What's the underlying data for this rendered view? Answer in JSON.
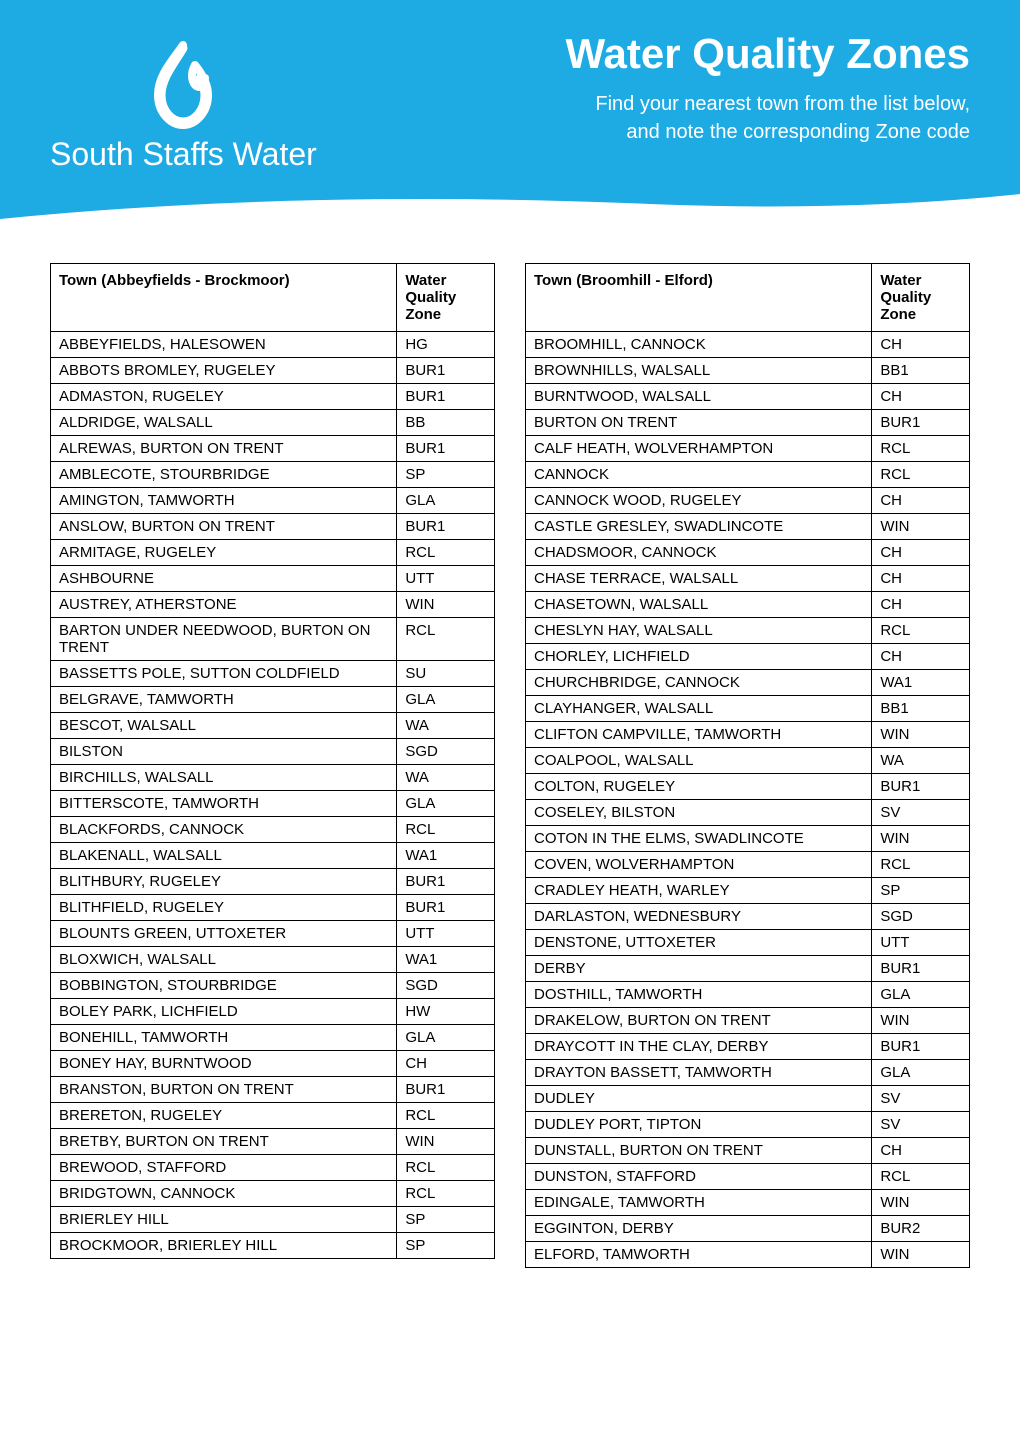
{
  "header": {
    "brand": "South Staffs Water",
    "title": "Water Quality Zones",
    "subtitle_line1": "Find your nearest town from the list below,",
    "subtitle_line2": "and note the corresponding Zone code"
  },
  "colors": {
    "header_bg": "#1eaae2",
    "header_text": "#ffffff",
    "body_bg": "#ffffff",
    "border": "#000000",
    "cell_text": "#000000"
  },
  "typography": {
    "title_fontsize": 42,
    "subtitle_fontsize": 20,
    "brand_fontsize": 32,
    "table_fontsize": 15
  },
  "tables": {
    "left": {
      "header_town": "Town (Abbeyfields - Brockmoor)",
      "header_zone": "Water Quality Zone",
      "rows": [
        {
          "town": "ABBEYFIELDS, HALESOWEN",
          "zone": "HG"
        },
        {
          "town": "ABBOTS BROMLEY, RUGELEY",
          "zone": "BUR1"
        },
        {
          "town": "ADMASTON, RUGELEY",
          "zone": "BUR1"
        },
        {
          "town": "ALDRIDGE, WALSALL",
          "zone": "BB"
        },
        {
          "town": "ALREWAS, BURTON ON TRENT",
          "zone": "BUR1"
        },
        {
          "town": "AMBLECOTE, STOURBRIDGE",
          "zone": "SP"
        },
        {
          "town": "AMINGTON, TAMWORTH",
          "zone": "GLA"
        },
        {
          "town": "ANSLOW, BURTON ON TRENT",
          "zone": "BUR1"
        },
        {
          "town": "ARMITAGE, RUGELEY",
          "zone": "RCL"
        },
        {
          "town": "ASHBOURNE",
          "zone": "UTT"
        },
        {
          "town": "AUSTREY, ATHERSTONE",
          "zone": "WIN"
        },
        {
          "town": "BARTON UNDER NEEDWOOD, BURTON ON TRENT",
          "zone": "RCL"
        },
        {
          "town": "BASSETTS POLE, SUTTON COLDFIELD",
          "zone": "SU"
        },
        {
          "town": "BELGRAVE, TAMWORTH",
          "zone": "GLA"
        },
        {
          "town": "BESCOT, WALSALL",
          "zone": "WA"
        },
        {
          "town": "BILSTON",
          "zone": "SGD"
        },
        {
          "town": "BIRCHILLS, WALSALL",
          "zone": "WA"
        },
        {
          "town": "BITTERSCOTE, TAMWORTH",
          "zone": "GLA"
        },
        {
          "town": "BLACKFORDS, CANNOCK",
          "zone": "RCL"
        },
        {
          "town": "BLAKENALL, WALSALL",
          "zone": "WA1"
        },
        {
          "town": "BLITHBURY, RUGELEY",
          "zone": "BUR1"
        },
        {
          "town": "BLITHFIELD, RUGELEY",
          "zone": "BUR1"
        },
        {
          "town": "BLOUNTS GREEN, UTTOXETER",
          "zone": "UTT"
        },
        {
          "town": "BLOXWICH, WALSALL",
          "zone": "WA1"
        },
        {
          "town": "BOBBINGTON, STOURBRIDGE",
          "zone": "SGD"
        },
        {
          "town": "BOLEY PARK, LICHFIELD",
          "zone": "HW"
        },
        {
          "town": "BONEHILL, TAMWORTH",
          "zone": "GLA"
        },
        {
          "town": "BONEY HAY, BURNTWOOD",
          "zone": "CH"
        },
        {
          "town": "BRANSTON, BURTON ON TRENT",
          "zone": "BUR1"
        },
        {
          "town": "BRERETON, RUGELEY",
          "zone": "RCL"
        },
        {
          "town": "BRETBY, BURTON ON TRENT",
          "zone": "WIN"
        },
        {
          "town": "BREWOOD, STAFFORD",
          "zone": "RCL"
        },
        {
          "town": "BRIDGTOWN, CANNOCK",
          "zone": "RCL"
        },
        {
          "town": "BRIERLEY HILL",
          "zone": "SP"
        },
        {
          "town": "BROCKMOOR, BRIERLEY HILL",
          "zone": "SP"
        }
      ]
    },
    "right": {
      "header_town": "Town (Broomhill - Elford)",
      "header_zone": "Water Quality Zone",
      "rows": [
        {
          "town": "BROOMHILL, CANNOCK",
          "zone": "CH"
        },
        {
          "town": "BROWNHILLS, WALSALL",
          "zone": "BB1"
        },
        {
          "town": "BURNTWOOD, WALSALL",
          "zone": "CH"
        },
        {
          "town": "BURTON ON TRENT",
          "zone": "BUR1"
        },
        {
          "town": "CALF HEATH, WOLVERHAMPTON",
          "zone": "RCL"
        },
        {
          "town": "CANNOCK",
          "zone": "RCL"
        },
        {
          "town": "CANNOCK WOOD, RUGELEY",
          "zone": "CH"
        },
        {
          "town": "CASTLE GRESLEY, SWADLINCOTE",
          "zone": "WIN"
        },
        {
          "town": "CHADSMOOR, CANNOCK",
          "zone": "CH"
        },
        {
          "town": "CHASE TERRACE, WALSALL",
          "zone": "CH"
        },
        {
          "town": "CHASETOWN, WALSALL",
          "zone": "CH"
        },
        {
          "town": "CHESLYN HAY, WALSALL",
          "zone": "RCL"
        },
        {
          "town": "CHORLEY, LICHFIELD",
          "zone": "CH"
        },
        {
          "town": "CHURCHBRIDGE, CANNOCK",
          "zone": "WA1"
        },
        {
          "town": "CLAYHANGER, WALSALL",
          "zone": "BB1"
        },
        {
          "town": "CLIFTON CAMPVILLE, TAMWORTH",
          "zone": "WIN"
        },
        {
          "town": "COALPOOL, WALSALL",
          "zone": "WA"
        },
        {
          "town": "COLTON, RUGELEY",
          "zone": "BUR1"
        },
        {
          "town": "COSELEY, BILSTON",
          "zone": "SV"
        },
        {
          "town": "COTON IN THE ELMS, SWADLINCOTE",
          "zone": "WIN"
        },
        {
          "town": "COVEN, WOLVERHAMPTON",
          "zone": "RCL"
        },
        {
          "town": "CRADLEY HEATH, WARLEY",
          "zone": "SP"
        },
        {
          "town": "DARLASTON, WEDNESBURY",
          "zone": "SGD"
        },
        {
          "town": "DENSTONE, UTTOXETER",
          "zone": "UTT"
        },
        {
          "town": "DERBY",
          "zone": "BUR1"
        },
        {
          "town": "DOSTHILL, TAMWORTH",
          "zone": "GLA"
        },
        {
          "town": "DRAKELOW, BURTON ON TRENT",
          "zone": "WIN"
        },
        {
          "town": "DRAYCOTT IN THE CLAY, DERBY",
          "zone": "BUR1"
        },
        {
          "town": "DRAYTON BASSETT, TAMWORTH",
          "zone": "GLA"
        },
        {
          "town": "DUDLEY",
          "zone": "SV"
        },
        {
          "town": "DUDLEY PORT, TIPTON",
          "zone": "SV"
        },
        {
          "town": "DUNSTALL, BURTON ON TRENT",
          "zone": "CH"
        },
        {
          "town": "DUNSTON, STAFFORD",
          "zone": "RCL"
        },
        {
          "town": "EDINGALE, TAMWORTH",
          "zone": "WIN"
        },
        {
          "town": "EGGINTON, DERBY",
          "zone": "BUR2"
        },
        {
          "town": "ELFORD, TAMWORTH",
          "zone": "WIN"
        }
      ]
    }
  }
}
